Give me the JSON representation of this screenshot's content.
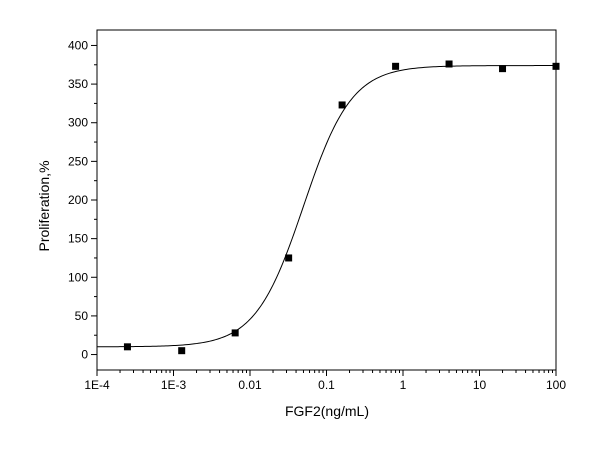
{
  "chart_data": {
    "type": "scatter",
    "title": "",
    "xlabel": "FGF2(ng/mL)",
    "ylabel": "Proliferation,%",
    "xscale": "log",
    "xlim": [
      0.0001,
      100
    ],
    "ylim": [
      -20,
      420
    ],
    "xticks": [
      {
        "value": 0.0001,
        "label": "1E-4"
      },
      {
        "value": 0.001,
        "label": "1E-3"
      },
      {
        "value": 0.01,
        "label": "0.01"
      },
      {
        "value": 0.1,
        "label": "0.1"
      },
      {
        "value": 1,
        "label": "1"
      },
      {
        "value": 10,
        "label": "10"
      },
      {
        "value": 100,
        "label": "100"
      }
    ],
    "yticks": [
      0,
      50,
      100,
      150,
      200,
      250,
      300,
      350,
      400
    ],
    "grid": false,
    "legend": "none",
    "series": [
      {
        "marker": "square",
        "color": "#000000",
        "points": [
          {
            "x": 0.00025,
            "y": 10
          },
          {
            "x": 0.00128,
            "y": 5
          },
          {
            "x": 0.0064,
            "y": 28
          },
          {
            "x": 0.032,
            "y": 125
          },
          {
            "x": 0.16,
            "y": 323
          },
          {
            "x": 0.8,
            "y": 373
          },
          {
            "x": 4,
            "y": 376
          },
          {
            "x": 20,
            "y": 370
          },
          {
            "x": 100,
            "y": 373
          }
        ]
      }
    ],
    "fit_curve": {
      "model": "logistic",
      "bottom": 10,
      "top": 374,
      "ec50": 0.05,
      "hill": 1.38,
      "color": "#000000"
    }
  }
}
